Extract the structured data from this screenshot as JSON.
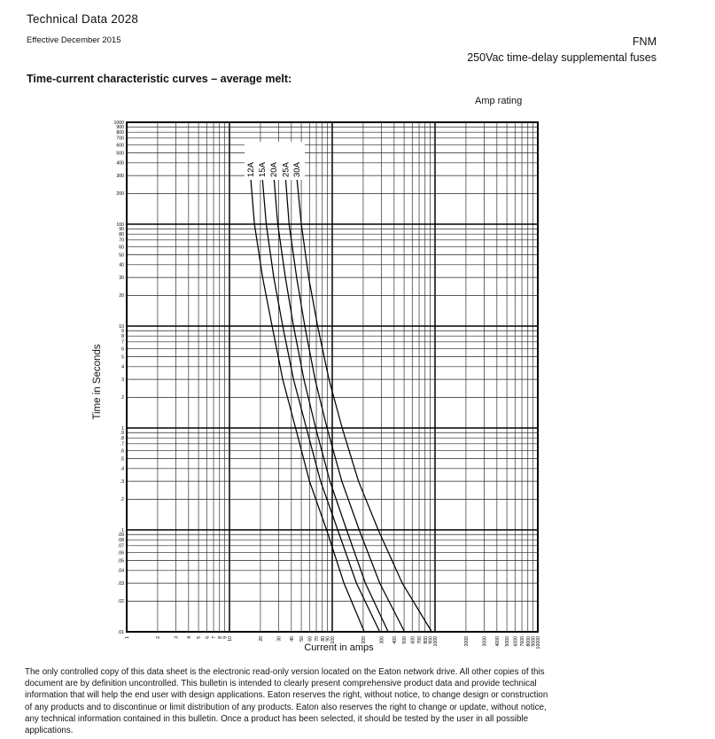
{
  "header": {
    "doc_title": "Technical Data 2028",
    "effective": "Effective December 2015",
    "product": "FNM",
    "product_subtitle": "250Vac time-delay supplemental fuses"
  },
  "section_title": "Time-current characteristic curves – average melt:",
  "chart": {
    "amp_rating_label": "Amp rating",
    "xlabel": "Current in amps",
    "ylabel": "Time in Seconds"
  },
  "footer": "The only controlled copy of this data sheet is the electronic read-only version located on the Eaton network drive. All other copies of this\ndocument are by definition uncontrolled. This bulletin is intended to clearly present comprehensive product data and provide technical\ninformation that will help the end user with design applications. Eaton reserves the right, without notice, to change design or construction\nof any products and to discontinue or limit distribution of any products. Eaton also reserves the right to change or update, without notice,\nany technical information  contained in this bulletin. Once a product has been selected, it should be tested by the user in all possible\napplications.",
  "chart_data": {
    "type": "line",
    "title": "Time-current characteristic curves - average melt",
    "xlabel": "Current in amps",
    "ylabel": "Time in Seconds",
    "legend_title": "Amp rating",
    "x_scale": "log",
    "y_scale": "log",
    "xlim": [
      1,
      10000
    ],
    "ylim": [
      0.01,
      1000
    ],
    "grid": true,
    "series": [
      {
        "name": "12A",
        "points": [
          [
            16,
            300
          ],
          [
            17.5,
            100
          ],
          [
            21,
            30
          ],
          [
            26,
            10
          ],
          [
            33,
            3
          ],
          [
            44,
            1
          ],
          [
            60,
            0.3
          ],
          [
            88,
            0.1
          ],
          [
            130,
            0.03
          ],
          [
            205,
            0.01
          ]
        ]
      },
      {
        "name": "15A",
        "points": [
          [
            20.8,
            300
          ],
          [
            22.8,
            100
          ],
          [
            27,
            30
          ],
          [
            33,
            10
          ],
          [
            42,
            3
          ],
          [
            56,
            1
          ],
          [
            77,
            0.3
          ],
          [
            113,
            0.1
          ],
          [
            172,
            0.03
          ],
          [
            290,
            0.01
          ]
        ]
      },
      {
        "name": "20A",
        "points": [
          [
            27,
            300
          ],
          [
            29.5,
            100
          ],
          [
            35,
            30
          ],
          [
            42,
            10
          ],
          [
            53,
            3
          ],
          [
            69,
            1
          ],
          [
            95,
            0.3
          ],
          [
            138,
            0.1
          ],
          [
            210,
            0.03
          ],
          [
            350,
            0.01
          ]
        ]
      },
      {
        "name": "25A",
        "points": [
          [
            35,
            300
          ],
          [
            38,
            100
          ],
          [
            45,
            30
          ],
          [
            54,
            10
          ],
          [
            68,
            3
          ],
          [
            89,
            1
          ],
          [
            124,
            0.3
          ],
          [
            183,
            0.1
          ],
          [
            290,
            0.03
          ],
          [
            505,
            0.01
          ]
        ]
      },
      {
        "name": "30A",
        "points": [
          [
            45,
            300
          ],
          [
            50,
            100
          ],
          [
            59,
            30
          ],
          [
            72,
            10
          ],
          [
            93,
            3
          ],
          [
            125,
            1
          ],
          [
            180,
            0.3
          ],
          [
            280,
            0.1
          ],
          [
            480,
            0.03
          ],
          [
            930,
            0.01
          ]
        ]
      }
    ]
  }
}
